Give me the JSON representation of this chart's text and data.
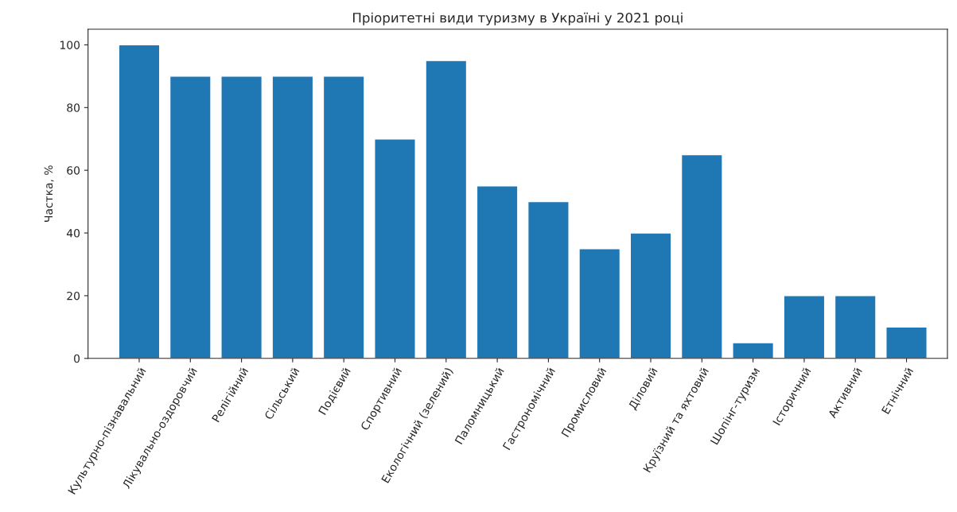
{
  "chart_data": {
    "type": "bar",
    "title": "Пріоритетні види туризму в Україні у 2021 році",
    "ylabel": "Частка, %",
    "categories": [
      "Культурно-пізнавальний",
      "Лікувально-оздоровчий",
      "Релігійний",
      "Сільський",
      "Подієвий",
      "Спортивний",
      "Екологічний (зелений)",
      "Паломницький",
      "Гастрономічний",
      "Промисловий",
      "Діловий",
      "Круїзний та яхтовий",
      "Шопінг-туризм",
      "Історичний",
      "Активний",
      "Етнічний"
    ],
    "values": [
      100,
      90,
      90,
      90,
      90,
      70,
      95,
      55,
      50,
      35,
      40,
      65,
      5,
      20,
      20,
      10
    ],
    "color": "#1f77b4",
    "ylim": [
      0,
      105
    ],
    "yticks": [
      0,
      20,
      40,
      60,
      80,
      100
    ],
    "grid": false,
    "legend": false
  }
}
